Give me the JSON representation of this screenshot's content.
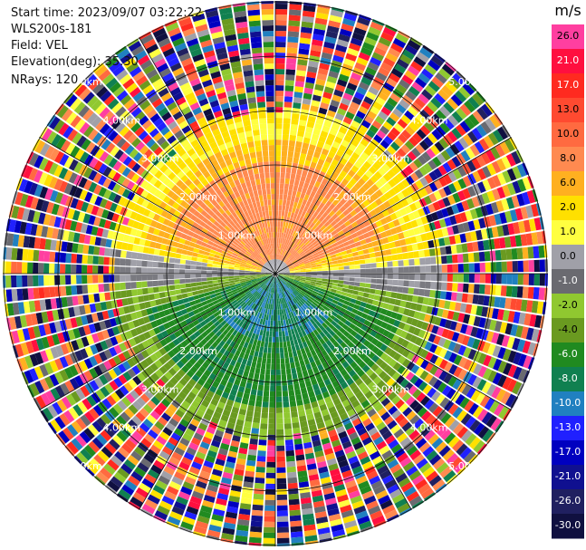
{
  "header": {
    "start_time": "Start time: 2023/09/07 03:22:22",
    "site": "WLS200s-181",
    "field": "Field: VEL",
    "elevation": "Elevation(deg): 35.30",
    "nrays": "NRays: 120"
  },
  "plot": {
    "range_rings_km": [
      1,
      2,
      3,
      4,
      5
    ],
    "ring_labels": [
      "1.00km",
      "2.00km",
      "3.00km",
      "4.00km",
      "5.00km"
    ]
  },
  "colorbar": {
    "unit": "m/s",
    "ticks": [
      "26.0",
      "21.0",
      "17.0",
      "13.0",
      "10.0",
      "8.0",
      "6.0",
      "2.0",
      "1.0",
      "0.0",
      "-1.0",
      "-2.0",
      "-4.0",
      "-6.0",
      "-8.0",
      "-10.0",
      "-13.0",
      "-17.0",
      "-21.0",
      "-26.0",
      "-30.0"
    ],
    "colors": [
      "#ff3fa0",
      "#ff0f3f",
      "#ff2a20",
      "#ff4a30",
      "#ff6a40",
      "#ff8a50",
      "#ffb020",
      "#ffe000",
      "#ffff40",
      "#a0a0a8",
      "#6a6a70",
      "#90c830",
      "#6a9a20",
      "#208a20",
      "#108050",
      "#2080c0",
      "#2020ff",
      "#0000c0",
      "#101090",
      "#202060",
      "#101040"
    ]
  }
}
